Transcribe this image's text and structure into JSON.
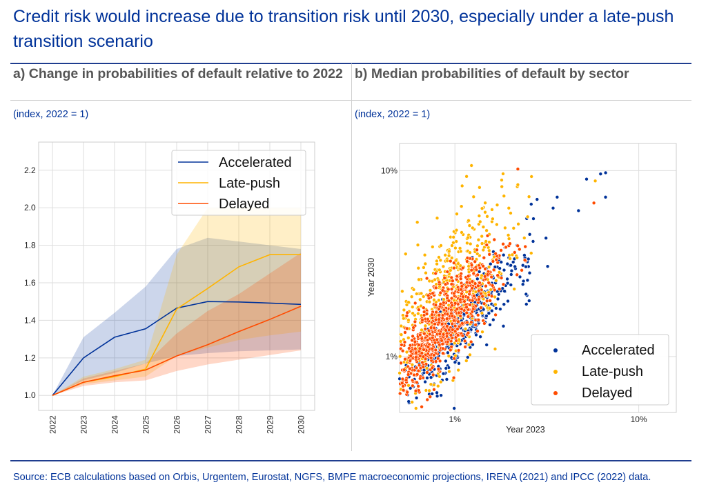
{
  "title": "Credit risk would increase due to transition risk until 2030, especially under a late-push transition scenario",
  "panel_a": {
    "title": "a) Change in probabilities of default relative to 2022",
    "subtitle": "(index, 2022 = 1)"
  },
  "panel_b": {
    "title": "b) Median probabilities of default by sector",
    "subtitle": "(index, 2022 = 1)"
  },
  "source": "Source: ECB calculations based on Orbis, Urgentem, Eurostat, NGFS, BMPE macroeconomic projections, IRENA (2021) and IPCC (2022) data.",
  "colors": {
    "title": "#003299",
    "accelerated": "#003299",
    "late_push": "#FFB400",
    "delayed": "#FF4B00"
  },
  "chart_data": [
    {
      "type": "line",
      "x": [
        "2022",
        "2023",
        "2024",
        "2025",
        "2026",
        "2027",
        "2028",
        "2029",
        "2030"
      ],
      "ylim": [
        0.92,
        2.35
      ],
      "yticks": [
        "1.0",
        "1.2",
        "1.4",
        "1.6",
        "1.8",
        "2.0",
        "2.2"
      ],
      "ytick_values": [
        1.0,
        1.2,
        1.4,
        1.6,
        1.8,
        2.0,
        2.2
      ],
      "grid": true,
      "legend": "top-right",
      "series": [
        {
          "name": "Accelerated",
          "color": "#003299",
          "values": [
            1.0,
            1.2,
            1.31,
            1.355,
            1.465,
            1.5,
            1.498,
            1.492,
            1.485
          ],
          "band_low": [
            1.0,
            1.08,
            1.12,
            1.17,
            1.21,
            1.225,
            1.235,
            1.24,
            1.245
          ],
          "band_high": [
            1.0,
            1.31,
            1.44,
            1.58,
            1.78,
            1.84,
            1.82,
            1.8,
            1.78
          ]
        },
        {
          "name": "Late-push",
          "color": "#FFB400",
          "values": [
            1.0,
            1.07,
            1.1,
            1.14,
            1.46,
            1.57,
            1.685,
            1.75,
            1.75
          ],
          "band_low": [
            1.0,
            1.06,
            1.08,
            1.1,
            1.21,
            1.255,
            1.295,
            1.32,
            1.34
          ],
          "band_high": [
            1.0,
            1.1,
            1.14,
            1.19,
            1.75,
            2.0,
            2.0,
            2.0,
            2.0
          ]
        },
        {
          "name": "Delayed",
          "color": "#FF4B00",
          "values": [
            1.0,
            1.07,
            1.105,
            1.135,
            1.21,
            1.27,
            1.34,
            1.405,
            1.475
          ],
          "band_low": [
            1.0,
            1.05,
            1.07,
            1.08,
            1.13,
            1.165,
            1.19,
            1.215,
            1.24
          ],
          "band_high": [
            1.0,
            1.09,
            1.13,
            1.17,
            1.33,
            1.45,
            1.54,
            1.65,
            1.76
          ]
        }
      ]
    },
    {
      "type": "scatter",
      "xlabel": "Year 2023",
      "ylabel": "Year 2030",
      "xscale": "log",
      "yscale": "log",
      "xlim": [
        0.5,
        16
      ],
      "ylim": [
        0.5,
        14
      ],
      "xticks": [
        "1%",
        "10%"
      ],
      "xtick_values": [
        1,
        10
      ],
      "yticks": [
        "1%",
        "10%"
      ],
      "ytick_values": [
        1,
        10
      ],
      "grid": true,
      "legend": "bottom-right",
      "series": [
        {
          "name": "Accelerated",
          "color": "#003299"
        },
        {
          "name": "Late-push",
          "color": "#FFB400"
        },
        {
          "name": "Delayed",
          "color": "#FF4B00"
        }
      ]
    }
  ]
}
